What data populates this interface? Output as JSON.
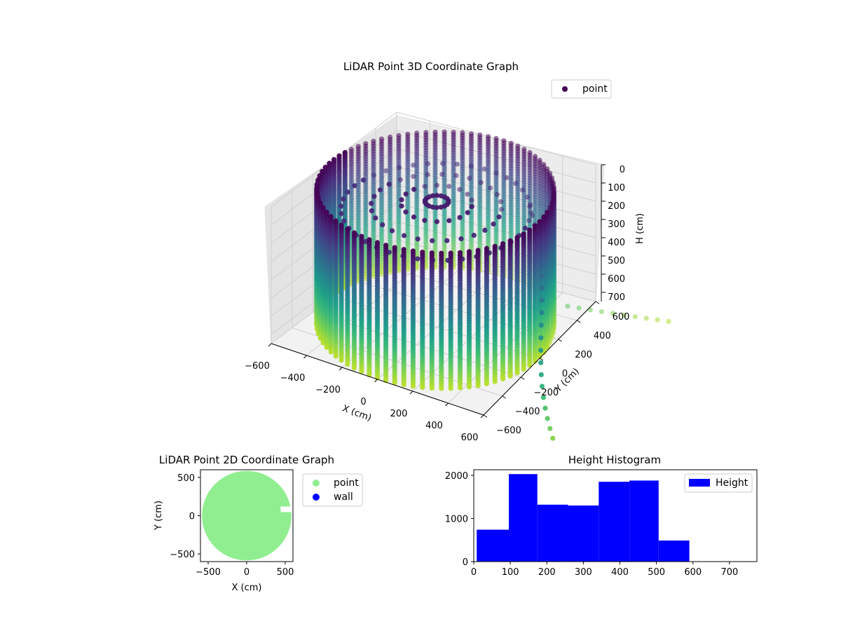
{
  "chart_data": [
    {
      "type": "scatter3d",
      "title": "LiDAR Point 3D Coordinate Graph",
      "xlabel": "X (cm)",
      "ylabel": "Y (cm)",
      "zlabel": "H (cm)",
      "xlim": [
        -600,
        600
      ],
      "ylim": [
        -600,
        600
      ],
      "zlim": [
        0,
        750
      ],
      "z_inverted": true,
      "xticks": [
        "−600",
        "−400",
        "−200",
        "0",
        "200",
        "400",
        "600"
      ],
      "yticks": [
        "−600",
        "−400",
        "−200",
        "0",
        "200",
        "400",
        "600"
      ],
      "zticks": [
        "0",
        "100",
        "200",
        "300",
        "400",
        "500",
        "600",
        "700"
      ],
      "grid": true,
      "colormap": "viridis",
      "legend": {
        "placement": "top-right",
        "entries": [
          {
            "label": "point",
            "color": "#440154"
          }
        ]
      },
      "structures": [
        {
          "name": "wall ring",
          "shape": "cylinder of vertical point columns",
          "radius_cm": 600,
          "z_range": [
            0,
            750
          ]
        },
        {
          "name": "inner rings",
          "shape": "concentric rings",
          "radius_cm": [
            480,
            330,
            180,
            60
          ],
          "z_cm": [
            110,
            90,
            70,
            60
          ]
        },
        {
          "name": "leaking trail",
          "shape": "points trailing outward",
          "x_range": [
            400,
            1050
          ],
          "y_range": [
            -700,
            600
          ],
          "z_range": [
            60,
            750
          ]
        }
      ]
    },
    {
      "type": "scatter",
      "title": "LiDAR Point 2D Coordinate Graph",
      "xlabel": "X (cm)",
      "ylabel": "Y (cm)",
      "xlim": [
        -600,
        600
      ],
      "ylim": [
        -600,
        600
      ],
      "xticks": [
        "−500",
        "0",
        "500"
      ],
      "yticks": [
        "−500",
        "0",
        "500"
      ],
      "legend": {
        "placement": "outside-right",
        "entries": [
          {
            "label": "point",
            "color": "#90ee90"
          },
          {
            "label": "wall",
            "color": "#0000ff"
          }
        ]
      },
      "series": [
        {
          "name": "point",
          "color": "#90ee90",
          "shape": "disc",
          "center": [
            0,
            0
          ],
          "radius": 580
        }
      ]
    },
    {
      "type": "bar",
      "title": "Height Histogram",
      "xlabel": "",
      "ylabel": "",
      "xlim": [
        0,
        775
      ],
      "ylim": [
        0,
        2130
      ],
      "xticks": [
        "0",
        "100",
        "200",
        "300",
        "400",
        "500",
        "600",
        "700"
      ],
      "yticks": [
        "0",
        "1000",
        "2000"
      ],
      "legend": {
        "placement": "top-right",
        "entries": [
          {
            "label": "Height",
            "color": "#0000ff"
          }
        ]
      },
      "bins": [
        {
          "x0": 8,
          "x1": 96,
          "value": 740
        },
        {
          "x0": 96,
          "x1": 174,
          "value": 2030
        },
        {
          "x0": 174,
          "x1": 258,
          "value": 1320
        },
        {
          "x0": 258,
          "x1": 342,
          "value": 1300
        },
        {
          "x0": 342,
          "x1": 426,
          "value": 1850
        },
        {
          "x0": 426,
          "x1": 506,
          "value": 1880
        },
        {
          "x0": 506,
          "x1": 590,
          "value": 490
        },
        {
          "x0": 590,
          "x1": 775,
          "value": 0
        }
      ],
      "color": "#0000ff"
    }
  ]
}
